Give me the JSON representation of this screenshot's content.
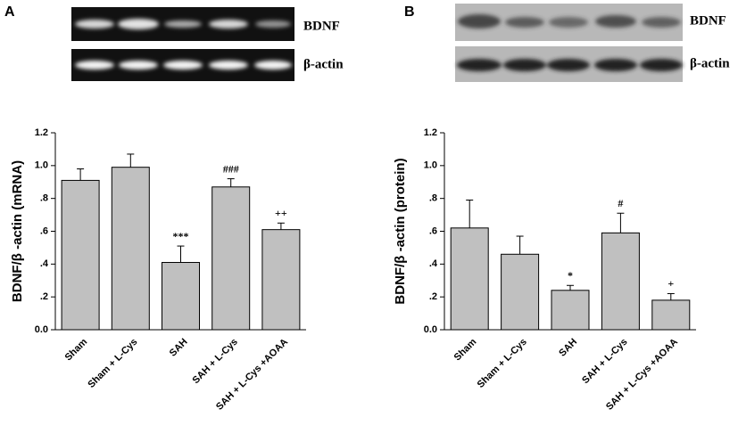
{
  "chart_data": [
    {
      "type": "bar",
      "panel_label": "A",
      "blot_labels": [
        "BDNF",
        "β-actin"
      ],
      "y_label": "BDNF/β -actin (mRNA)",
      "categories": [
        "Sham",
        "Sham + L-Cys",
        "SAH",
        "SAH + L-Cys",
        "SAH + L-Cys +AOAA"
      ],
      "values": [
        0.91,
        0.99,
        0.41,
        0.87,
        0.61
      ],
      "errors": [
        0.07,
        0.08,
        0.1,
        0.05,
        0.04
      ],
      "annotations": [
        null,
        null,
        "***",
        "###",
        "++"
      ],
      "color": "#c0c0c0",
      "ylim": [
        0,
        1.2
      ],
      "yticks": [
        {
          "value": 0,
          "label": "0.0"
        },
        {
          "value": 0.2,
          "label": ".2"
        },
        {
          "value": 0.4,
          "label": ".4"
        },
        {
          "value": 0.6,
          "label": ".6"
        },
        {
          "value": 0.8,
          "label": ".8"
        },
        {
          "value": 1.0,
          "label": "1.0"
        },
        1.2
      ]
    },
    {
      "type": "bar",
      "panel_label": "B",
      "blot_labels": [
        "BDNF",
        "β-actin"
      ],
      "y_label": "BDNF/β -actin (protein)",
      "categories": [
        "Sham",
        "Sham + L-Cys",
        "SAH",
        "SAH + L-Cys",
        "SAH + L-Cys +AOAA"
      ],
      "values": [
        0.62,
        0.46,
        0.24,
        0.59,
        0.18
      ],
      "errors": [
        0.17,
        0.11,
        0.03,
        0.12,
        0.04
      ],
      "annotations": [
        null,
        null,
        "*",
        "#",
        "+"
      ],
      "color": "#c0c0c0",
      "ylim": [
        0,
        1.2
      ],
      "yticks": [
        {
          "value": 0,
          "label": "0.0"
        },
        {
          "value": 0.2,
          "label": ".2"
        },
        {
          "value": 0.4,
          "label": ".4"
        },
        {
          "value": 0.6,
          "label": ".6"
        },
        {
          "value": 0.8,
          "label": ".8"
        },
        {
          "value": 1.0,
          "label": "1.0"
        },
        1.2
      ]
    }
  ]
}
